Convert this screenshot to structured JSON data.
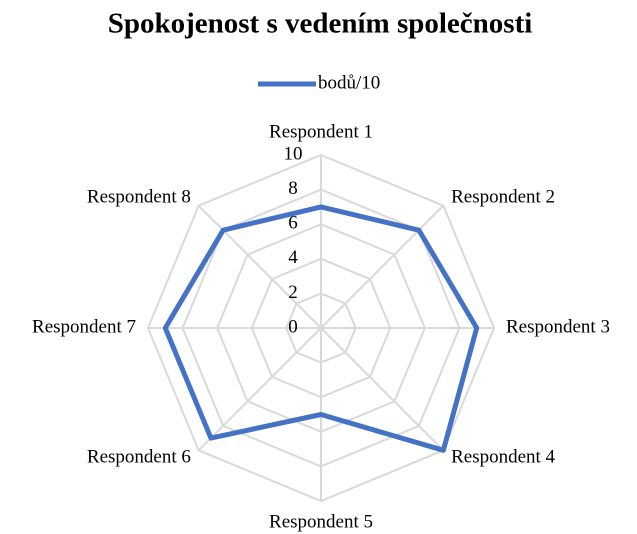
{
  "chart_data": {
    "type": "radar",
    "title": "Spokojenost s vedením společnosti",
    "categories": [
      "Respondent 1",
      "Respondent 2",
      "Respondent 3",
      "Respondent 4",
      "Respondent 5",
      "Respondent 6",
      "Respondent 7",
      "Respondent 8"
    ],
    "series": [
      {
        "name": "bodů/10",
        "color": "#4472c4",
        "values": [
          7,
          8,
          9,
          10,
          5,
          9,
          9,
          8
        ]
      }
    ],
    "ylim": [
      0,
      10
    ],
    "yticks": [
      0,
      2,
      4,
      6,
      8,
      10
    ],
    "grid": true,
    "legend": "top"
  }
}
